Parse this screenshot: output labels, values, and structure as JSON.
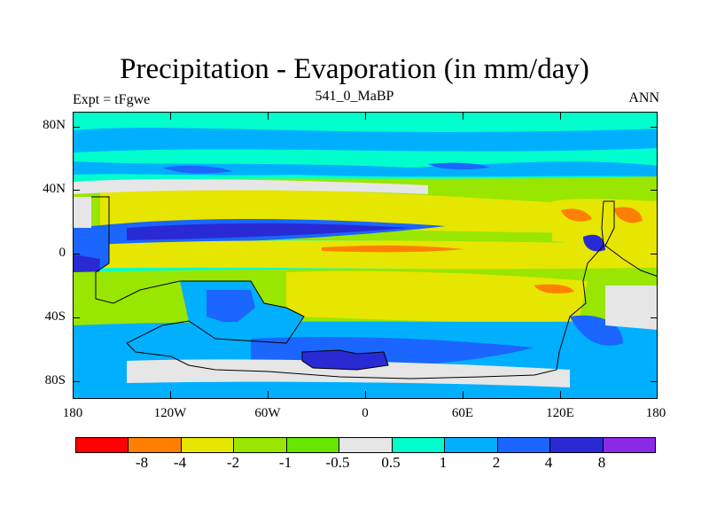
{
  "title": "Precipitation - Evaporation (in mm/day)",
  "subtitle_left": "Expt = tFgwe",
  "subtitle_center": "541_0_MaBP",
  "subtitle_right": "ANN",
  "y_axis_labels": [
    "80N",
    "40N",
    "0",
    "40S",
    "80S"
  ],
  "x_axis_labels": [
    "180",
    "120W",
    "60W",
    "0",
    "60E",
    "120E",
    "180"
  ],
  "colorbar": {
    "colors": [
      "#ff0000",
      "#ff8000",
      "#e6e600",
      "#99e600",
      "#66e600",
      "#e6e6e6",
      "#00ffcc",
      "#00b0ff",
      "#1a66ff",
      "#2a2ad4",
      "#8a2ae6"
    ],
    "labels": [
      "-8",
      "-4",
      "-2",
      "-1",
      "-0.5",
      "0.5",
      "1",
      "2",
      "4",
      "8"
    ]
  },
  "legend_colors": {
    "ocean_bg": "#00ffcc",
    "land_neutral": "#e6e6e6"
  }
}
